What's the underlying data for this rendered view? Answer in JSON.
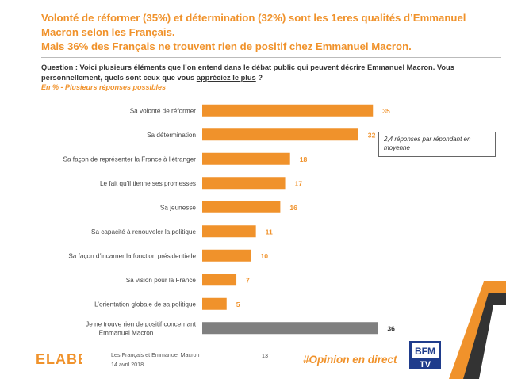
{
  "title": {
    "line1": "Volonté de réformer (35%) et détermination (32%) sont les 1eres qualités d’Emmanuel",
    "line2": "Macron selon les Français.",
    "line3": "Mais 36% des Français ne trouvent rien de positif chez Emmanuel Macron."
  },
  "question": {
    "text_before": "Question : Voici plusieurs éléments que l’on entend dans le débat public qui peuvent décrire Emmanuel Macron. Vous personnellement, quels sont ceux que vous ",
    "emphasis": "appréciez le plus",
    "text_after": " ?",
    "subtitle": "En % - Plusieurs réponses possibles"
  },
  "note": "2,4 réponses par répondant en moyenne",
  "footer": {
    "study": "Les Français et Emmanuel Macron",
    "date": "14 avril 2018",
    "page": "13",
    "hashtag": "#Opinion en direct",
    "logo": "ELABE",
    "channel_logo": "BFM TV"
  },
  "colors": {
    "accent": "#f0922b",
    "bar": "#f0922b",
    "bar_negative": "#7f7f7f",
    "value_negative": "#333333",
    "deco_dark": "#333333",
    "logo_blue": "#1f3c8c"
  },
  "chart_data": {
    "type": "bar",
    "orientation": "horizontal",
    "categories": [
      "Sa volonté de réformer",
      "Sa détermination",
      "Sa façon de représenter la France à l’étranger",
      "Le fait qu’il tienne ses promesses",
      "Sa jeunesse",
      "Sa capacité à renouveler la politique",
      "Sa façon d’incarner la fonction présidentielle",
      "Sa vision pour la France",
      "L’orientation globale de sa politique",
      "Je ne trouve rien de positif concernant Emmanuel Macron"
    ],
    "values": [
      35,
      32,
      18,
      17,
      16,
      11,
      10,
      7,
      5,
      36
    ],
    "highlight_index": 9,
    "xlim": [
      0,
      40
    ],
    "grid": false
  }
}
